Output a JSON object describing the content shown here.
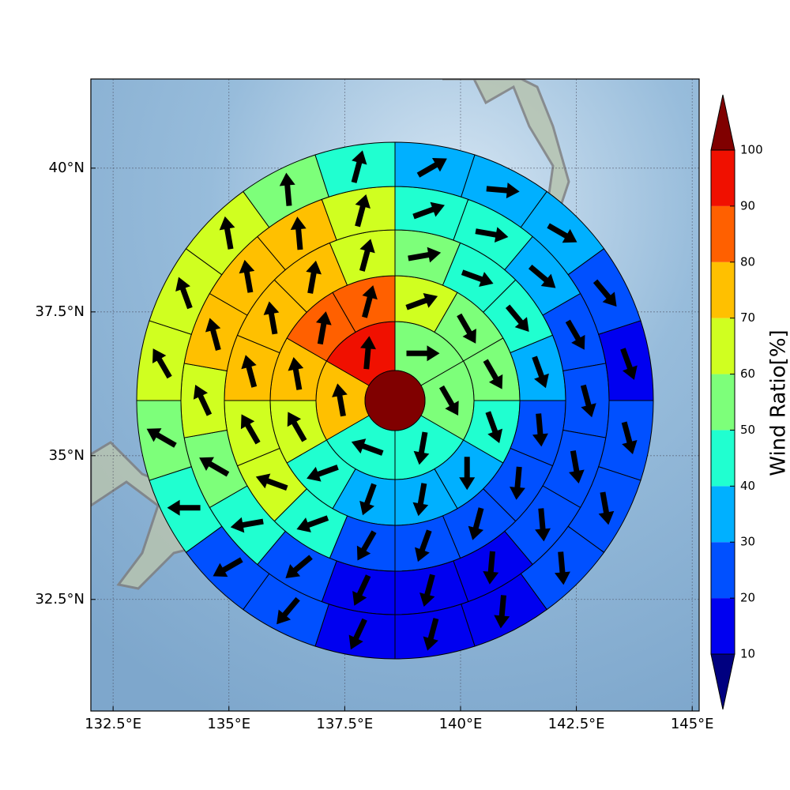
{
  "chart_data": {
    "type": "polar-sector-map",
    "xlim": [
      132.02,
      145.15
    ],
    "ylim": [
      30.56,
      41.55
    ],
    "xticks": [
      {
        "value": 132.5,
        "label": "132.5°E"
      },
      {
        "value": 135,
        "label": "135°E"
      },
      {
        "value": 137.5,
        "label": "137.5°E"
      },
      {
        "value": 140,
        "label": "140°E"
      },
      {
        "value": 142.5,
        "label": "142.5°E"
      },
      {
        "value": 145,
        "label": "145°E"
      }
    ],
    "yticks": [
      {
        "value": 32.5,
        "label": "32.5°N"
      },
      {
        "value": 35,
        "label": "35°N"
      },
      {
        "value": 37.5,
        "label": "37.5°N"
      },
      {
        "value": 40,
        "label": "40°N"
      }
    ],
    "grid": true,
    "center_color": "#800000",
    "rings": [
      {
        "values": [
          55,
          55,
          45,
          45,
          75,
          95
        ],
        "directions": [
          90,
          150,
          190,
          290,
          350,
          5
        ]
      },
      {
        "values": [
          65,
          55,
          55,
          45,
          35,
          35,
          35,
          45,
          65,
          75,
          85,
          85
        ],
        "directions": [
          70,
          150,
          150,
          160,
          180,
          190,
          200,
          250,
          330,
          350,
          10,
          15
        ]
      },
      {
        "values": [
          55,
          45,
          45,
          35,
          25,
          25,
          25,
          25,
          25,
          45,
          65,
          65,
          75,
          75,
          75,
          65
        ],
        "directions": [
          80,
          110,
          140,
          160,
          175,
          185,
          195,
          200,
          210,
          250,
          290,
          330,
          345,
          350,
          10,
          15
        ]
      },
      {
        "values": [
          45,
          45,
          35,
          25,
          25,
          25,
          25,
          15,
          15,
          15,
          25,
          45,
          55,
          65,
          75,
          75,
          75,
          65
        ],
        "directions": [
          70,
          100,
          130,
          150,
          165,
          170,
          175,
          185,
          195,
          205,
          230,
          260,
          300,
          335,
          345,
          350,
          355,
          15
        ]
      },
      {
        "values": [
          35,
          35,
          35,
          25,
          15,
          25,
          25,
          25,
          15,
          15,
          15,
          25,
          25,
          45,
          55,
          65,
          65,
          65,
          55,
          45
        ],
        "directions": [
          60,
          95,
          120,
          140,
          160,
          165,
          170,
          175,
          185,
          195,
          205,
          220,
          240,
          270,
          300,
          330,
          340,
          350,
          355,
          15
        ]
      }
    ],
    "colorbar": {
      "label": "Wind Ratio[%]",
      "ticks": [
        10,
        20,
        30,
        40,
        50,
        60,
        70,
        80,
        90,
        100
      ],
      "colors": [
        "#0000f0",
        "#0050ff",
        "#00b0ff",
        "#20ffd0",
        "#7dff7a",
        "#d0ff20",
        "#ffc000",
        "#ff6000",
        "#f01000"
      ],
      "under_color": "#000080",
      "over_color": "#800000"
    }
  }
}
